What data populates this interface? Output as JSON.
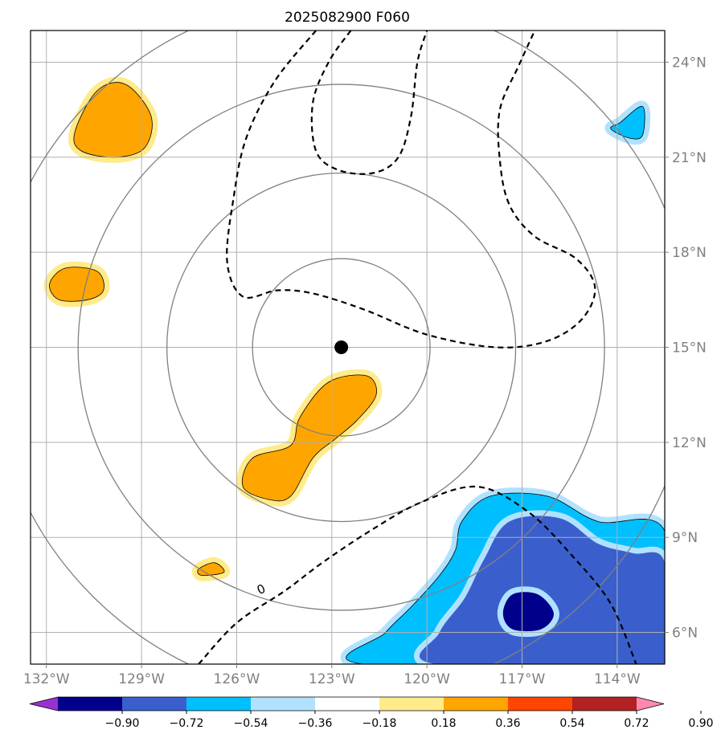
{
  "chart_data": {
    "type": "contour",
    "title": "2025082900 F060",
    "map": {
      "lon_range": [
        -132.5,
        -112.5
      ],
      "lat_range": [
        5,
        25
      ],
      "lon_ticks": [
        -132,
        -129,
        -126,
        -123,
        -120,
        -117,
        -114
      ],
      "lat_ticks": [
        6,
        9,
        12,
        15,
        18,
        21,
        24
      ],
      "lon_tick_labels": [
        "132°W",
        "129°W",
        "126°W",
        "123°W",
        "120°W",
        "117°W",
        "114°W"
      ],
      "lat_tick_labels": [
        "6°N",
        "9°N",
        "12°N",
        "15°N",
        "18°N",
        "21°N",
        "24°N"
      ],
      "gridlines": true
    },
    "center_marker": {
      "lon": -122.7,
      "lat": 15.0
    },
    "range_rings_deg": [
      2.8,
      5.5,
      8.3,
      11.1
    ],
    "contour_line_label": "0",
    "colorbar": {
      "levels": [
        -0.9,
        -0.72,
        -0.54,
        -0.36,
        -0.18,
        0.18,
        0.36,
        0.54,
        0.72,
        0.9
      ],
      "tick_labels": [
        "−0.90",
        "−0.72",
        "−0.54",
        "−0.36",
        "−0.18",
        "0.18",
        "0.36",
        "0.54",
        "0.72",
        "0.90"
      ],
      "colors": [
        "#9b30d0",
        "#00008b",
        "#3a5fcd",
        "#00bfff",
        "#b0e2ff",
        "#ffffff",
        "#ffeb8a",
        "#ffa500",
        "#ff4500",
        "#b22222",
        "#ff88b0"
      ],
      "extend": "both"
    },
    "filled_regions": [
      {
        "name": "positive-cell-nw",
        "level": 0.36,
        "polygon": [
          [
            -130.4,
            23.1
          ],
          [
            -129.5,
            23.3
          ],
          [
            -128.7,
            22.3
          ],
          [
            -128.9,
            21.3
          ],
          [
            -129.8,
            21.0
          ],
          [
            -130.9,
            21.2
          ],
          [
            -131.1,
            21.8
          ]
        ]
      },
      {
        "name": "positive-cell-w",
        "level": 0.36,
        "polygon": [
          [
            -131.9,
            17.0
          ],
          [
            -131.4,
            17.5
          ],
          [
            -130.4,
            17.4
          ],
          [
            -130.2,
            16.8
          ],
          [
            -130.7,
            16.5
          ],
          [
            -131.6,
            16.5
          ]
        ]
      },
      {
        "name": "positive-band-center",
        "level": 0.36,
        "polygon": [
          [
            -124.0,
            12.8
          ],
          [
            -123.1,
            13.9
          ],
          [
            -121.9,
            14.1
          ],
          [
            -121.6,
            13.5
          ],
          [
            -122.2,
            12.7
          ],
          [
            -122.9,
            12.1
          ],
          [
            -123.6,
            11.5
          ],
          [
            -124.3,
            10.3
          ],
          [
            -125.0,
            10.2
          ],
          [
            -125.8,
            10.6
          ],
          [
            -125.5,
            11.5
          ],
          [
            -124.3,
            11.9
          ]
        ]
      },
      {
        "name": "positive-cell-small",
        "level": 0.36,
        "polygon": [
          [
            -127.2,
            8.0
          ],
          [
            -126.7,
            8.2
          ],
          [
            -126.4,
            7.9
          ],
          [
            -127.1,
            7.8
          ]
        ]
      },
      {
        "name": "negative-cell-ne",
        "level": -0.36,
        "polygon": [
          [
            -113.9,
            22.1
          ],
          [
            -113.2,
            22.6
          ],
          [
            -113.2,
            21.7
          ],
          [
            -113.6,
            21.6
          ],
          [
            -114.2,
            21.9
          ]
        ]
      },
      {
        "name": "negative-region-se",
        "level": -0.36,
        "polygon": [
          [
            -118.9,
            9.5
          ],
          [
            -118.0,
            10.3
          ],
          [
            -116.2,
            10.3
          ],
          [
            -114.6,
            9.5
          ],
          [
            -112.5,
            9.2
          ],
          [
            -112.5,
            5.0
          ],
          [
            -122.0,
            5.0
          ],
          [
            -121.3,
            6.0
          ],
          [
            -120.5,
            6.8
          ],
          [
            -119.6,
            7.8
          ],
          [
            -119.1,
            8.6
          ]
        ]
      },
      {
        "name": "negative-core-se",
        "level": -0.54,
        "polygon": [
          [
            -117.4,
            9.5
          ],
          [
            -115.8,
            9.6
          ],
          [
            -114.6,
            8.8
          ],
          [
            -113.5,
            8.5
          ],
          [
            -112.5,
            8.2
          ],
          [
            -112.5,
            5.0
          ],
          [
            -119.7,
            5.0
          ],
          [
            -119.6,
            6.0
          ],
          [
            -118.8,
            7.1
          ],
          [
            -118.2,
            8.3
          ]
        ]
      },
      {
        "name": "negative-min-se",
        "level": -0.72,
        "polygon": [
          [
            -117.3,
            7.2
          ],
          [
            -116.5,
            7.2
          ],
          [
            -116.0,
            6.6
          ],
          [
            -116.4,
            6.1
          ],
          [
            -117.3,
            6.1
          ],
          [
            -117.6,
            6.6
          ]
        ]
      }
    ],
    "dashed_contours": [
      {
        "name": "contour-west-loop",
        "points": [
          [
            -123.5,
            25.0
          ],
          [
            -124.8,
            23.4
          ],
          [
            -125.7,
            21.6
          ],
          [
            -126.1,
            19.7
          ],
          [
            -126.3,
            17.7
          ],
          [
            -125.8,
            16.6
          ],
          [
            -124.7,
            16.8
          ],
          [
            -123.6,
            16.7
          ],
          [
            -122.0,
            16.2
          ],
          [
            -120.0,
            15.4
          ],
          [
            -117.8,
            15.0
          ],
          [
            -116.2,
            15.2
          ],
          [
            -115.1,
            15.9
          ],
          [
            -114.7,
            16.9
          ],
          [
            -115.3,
            17.8
          ],
          [
            -116.6,
            18.5
          ],
          [
            -117.4,
            19.5
          ],
          [
            -117.7,
            20.9
          ],
          [
            -117.7,
            22.5
          ],
          [
            -117.1,
            23.9
          ],
          [
            -116.6,
            25.0
          ]
        ]
      },
      {
        "name": "contour-north-loop",
        "points": [
          [
            -122.4,
            25.0
          ],
          [
            -123.1,
            24.0
          ],
          [
            -123.6,
            22.7
          ],
          [
            -123.5,
            21.2
          ],
          [
            -122.8,
            20.6
          ],
          [
            -121.7,
            20.5
          ],
          [
            -120.9,
            21.0
          ],
          [
            -120.5,
            22.3
          ],
          [
            -120.3,
            24.0
          ],
          [
            -120.0,
            25.0
          ]
        ]
      },
      {
        "name": "contour-south",
        "points": [
          [
            -127.2,
            5.0
          ],
          [
            -126.0,
            6.3
          ],
          [
            -124.5,
            7.3
          ],
          [
            -123.3,
            8.2
          ],
          [
            -121.8,
            9.2
          ],
          [
            -120.2,
            10.1
          ],
          [
            -118.4,
            10.6
          ],
          [
            -116.8,
            9.8
          ],
          [
            -115.4,
            8.4
          ],
          [
            -114.2,
            6.9
          ],
          [
            -113.4,
            5.0
          ]
        ]
      }
    ]
  }
}
